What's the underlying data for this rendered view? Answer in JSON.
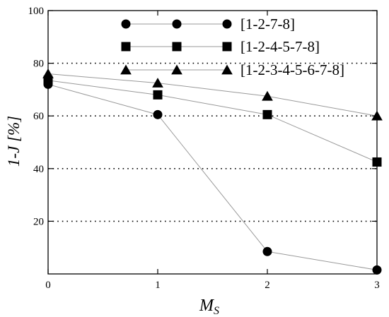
{
  "chart_data": {
    "type": "line",
    "title": "",
    "xlabel_main": "M",
    "xlabel_sub": "S",
    "ylabel": "1-J [%]",
    "xlim": [
      0,
      3
    ],
    "ylim": [
      0,
      100
    ],
    "xticks": [
      "0",
      "1",
      "2",
      "3"
    ],
    "yticks": [
      "20",
      "40",
      "60",
      "80",
      "100"
    ],
    "ygrid_dotted": [
      20,
      40,
      60,
      80
    ],
    "legend_position": "top-right",
    "series": [
      {
        "name": "[1-2-7-8]",
        "marker": "circle",
        "x": [
          0,
          1,
          2,
          3
        ],
        "y": [
          72,
          60.5,
          8.5,
          1.5
        ]
      },
      {
        "name": "[1-2-4-5-7-8]",
        "marker": "square",
        "x": [
          0,
          1,
          2,
          3
        ],
        "y": [
          73.5,
          68,
          60.5,
          42.5
        ]
      },
      {
        "name": "[1-2-3-4-5-6-7-8]",
        "marker": "triangle",
        "x": [
          0,
          1,
          2,
          3
        ],
        "y": [
          76,
          72.5,
          67.5,
          60
        ]
      }
    ]
  }
}
